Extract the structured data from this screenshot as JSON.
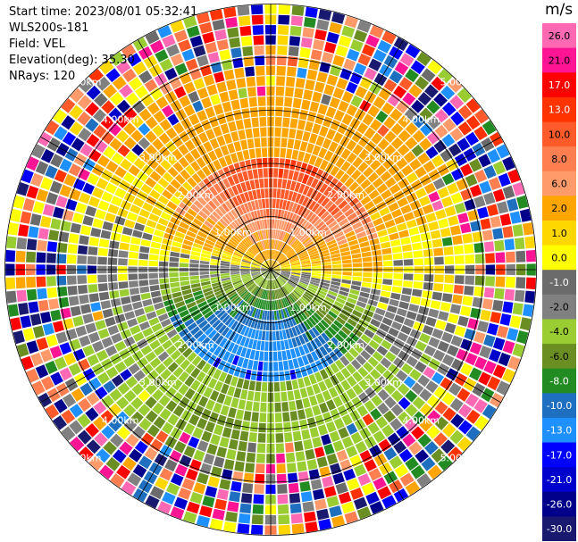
{
  "header": {
    "start_time": "Start time: 2023/08/01 05:32:41",
    "instrument": "WLS200s-181",
    "field": "Field: VEL",
    "elevation": "Elevation(deg): 35.30",
    "nrays": "NRays: 120"
  },
  "chart_data": {
    "type": "heatmap",
    "projection": "polar-ppi",
    "field": "VEL",
    "units": "m/s",
    "elevation_deg": 35.3,
    "n_rays": 120,
    "max_range_km": 5.0,
    "range_rings_km": [
      1,
      2,
      3,
      4,
      5
    ],
    "ring_labels": [
      "1.00km",
      "2.00km",
      "3.00km",
      "4.00km",
      "5.00km"
    ],
    "colorbar_ticks": [
      "26.0",
      "21.0",
      "17.0",
      "13.0",
      "10.0",
      "8.0",
      "6.0",
      "2.0",
      "1.0",
      "0.0",
      "-1.0",
      "-2.0",
      "-4.0",
      "-6.0",
      "-8.0",
      "-10.0",
      "-13.0",
      "-17.0",
      "-21.0",
      "-26.0",
      "-30.0"
    ],
    "colorbar_colors": [
      "#ff69b4",
      "#ff1493",
      "#ff0000",
      "#ff3300",
      "#ff5a2a",
      "#ff7f50",
      "#ff9b6a",
      "#ffa500",
      "#ffd700",
      "#ffff00",
      "#6b6b6b",
      "#808080",
      "#9acd32",
      "#6b8e23",
      "#228b22",
      "#1e6fbf",
      "#1e90ff",
      "#0000ff",
      "#0000cd",
      "#00008b",
      "#191970"
    ],
    "xlim_km": [
      -5,
      5
    ],
    "ylim_km": [
      -5,
      5
    ]
  }
}
